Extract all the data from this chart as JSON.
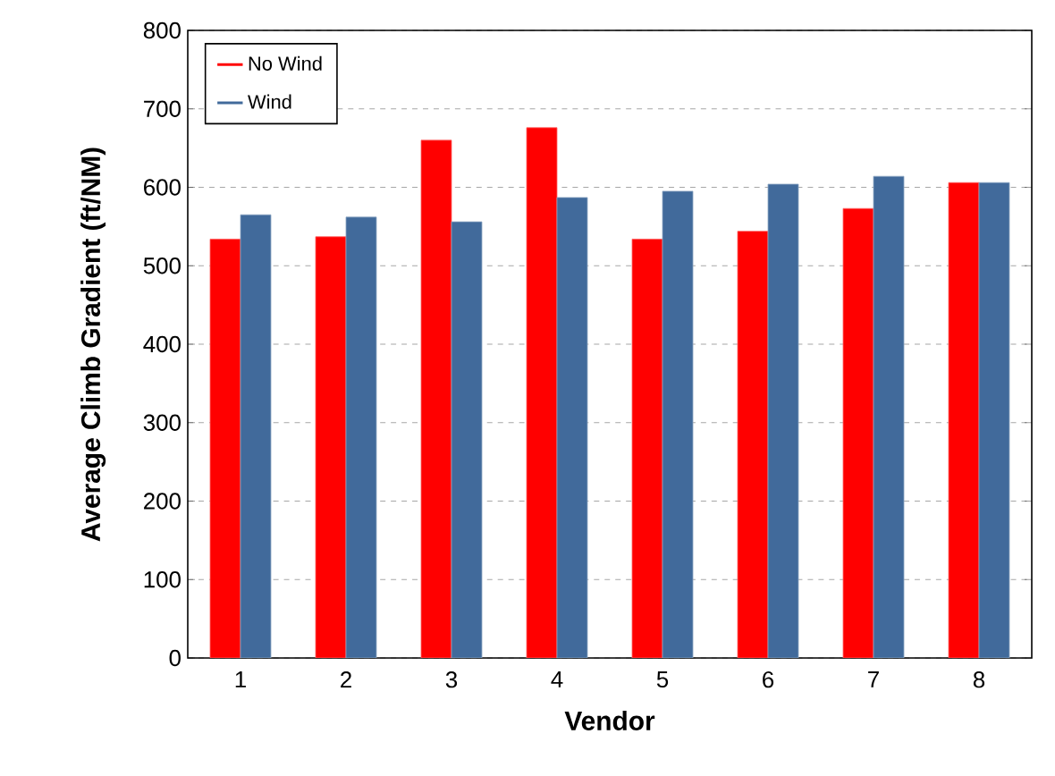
{
  "chart_data": {
    "type": "bar",
    "xlabel": "Vendor",
    "ylabel": "Average Climb Gradient (ft/NM)",
    "categories": [
      "1",
      "2",
      "3",
      "4",
      "5",
      "6",
      "7",
      "8"
    ],
    "series": [
      {
        "name": "No Wind",
        "color": "#ff0000",
        "values": [
          534,
          537,
          660,
          676,
          534,
          544,
          573,
          606
        ]
      },
      {
        "name": "Wind",
        "color": "#416a9b",
        "values": [
          565,
          562,
          556,
          587,
          595,
          604,
          614,
          606
        ]
      }
    ],
    "ylim": [
      0,
      800
    ],
    "yticks": [
      0,
      100,
      200,
      300,
      400,
      500,
      600,
      700,
      800
    ],
    "grid": "y",
    "legend": "top left"
  }
}
